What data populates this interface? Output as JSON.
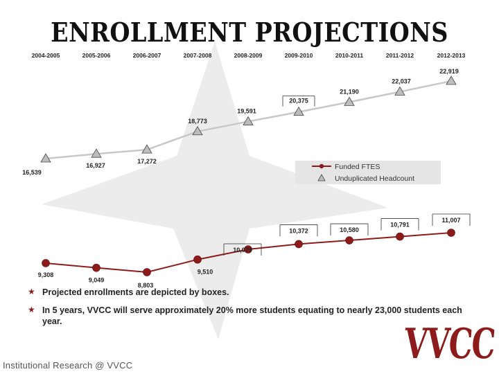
{
  "title": "ENROLLMENT PROJECTIONS",
  "bullets": [
    "Projected enrollments are depicted by boxes.",
    "In 5 years, VVCC will serve approximately 20% more students equating to nearly 23,000 students each year."
  ],
  "footer": "Institutional Research @ VVCC",
  "logo_text": "VVCC",
  "colors": {
    "funded_line": "#8e1b1b",
    "headcount_line": "#c8c8c8",
    "headcount_marker": "#bdbdbd",
    "background_star": "#dcdcdc",
    "legend_bg": "#e5e5e5"
  },
  "chart_data": {
    "type": "line",
    "categories": [
      "2004-2005",
      "2005-2006",
      "2006-2007",
      "2007-2008",
      "2008-2009",
      "2009-2010",
      "2010-2011",
      "2011-2012",
      "2012-2013"
    ],
    "series": [
      {
        "name": "Funded FTES",
        "marker": "circle",
        "values": [
          9308,
          9049,
          8803,
          9510,
          10079,
          10372,
          10580,
          10791,
          11007
        ],
        "labels": [
          "9,308",
          "9,049",
          "8,803",
          "9,510",
          "10,079",
          "10,372",
          "10,580",
          "10,791",
          "11,007"
        ],
        "projected": [
          false,
          false,
          false,
          false,
          true,
          true,
          true,
          true,
          true
        ]
      },
      {
        "name": "Unduplicated Headcount",
        "marker": "triangle",
        "values": [
          16539,
          16927,
          17272,
          18773,
          19591,
          20375,
          21190,
          22037,
          22919
        ],
        "labels": [
          "16,539",
          "16,927",
          "17,272",
          "18,773",
          "19,591",
          "20,375",
          "21,190",
          "22,037",
          "22,919"
        ],
        "projected": [
          false,
          false,
          false,
          false,
          false,
          true,
          false,
          false,
          false
        ]
      }
    ],
    "legend_position": "center-right",
    "grid": false
  }
}
